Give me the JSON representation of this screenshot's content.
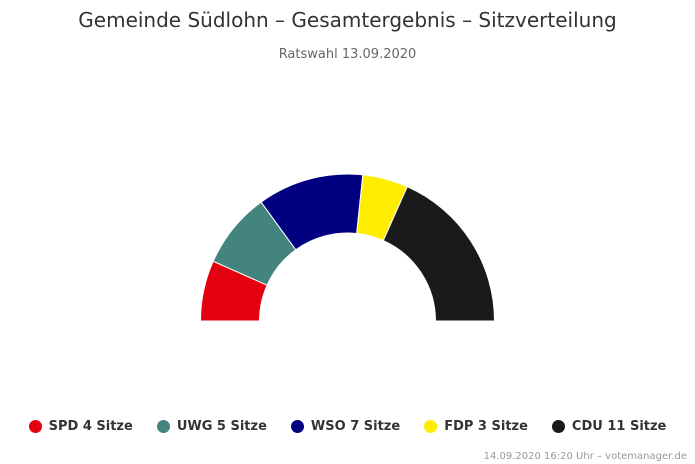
{
  "chart_data": {
    "type": "pie",
    "subtype": "parliament-semicircle",
    "title": "Gemeinde Südlohn – Gesamtergebnis – Sitzverteilung",
    "subtitle": "Ratswahl 13.09.2020",
    "unit": "Sitze",
    "categories": [
      "SPD",
      "UWG",
      "WSO",
      "FDP",
      "CDU"
    ],
    "values": [
      4,
      5,
      7,
      3,
      11
    ],
    "colors": [
      "#e3000f",
      "#44847e",
      "#000080",
      "#ffed00",
      "#1a1a1a"
    ],
    "legend": {
      "placement": "bottom",
      "items": [
        {
          "label": "SPD 4 Sitze",
          "color": "#e3000f"
        },
        {
          "label": "UWG 5 Sitze",
          "color": "#44847e"
        },
        {
          "label": "WSO 7 Sitze",
          "color": "#000080"
        },
        {
          "label": "FDP 3 Sitze",
          "color": "#ffed00"
        },
        {
          "label": "CDU 11 Sitze",
          "color": "#1a1a1a"
        }
      ]
    }
  },
  "credits": "14.09.2020 16:20 Uhr – votemanager.de"
}
